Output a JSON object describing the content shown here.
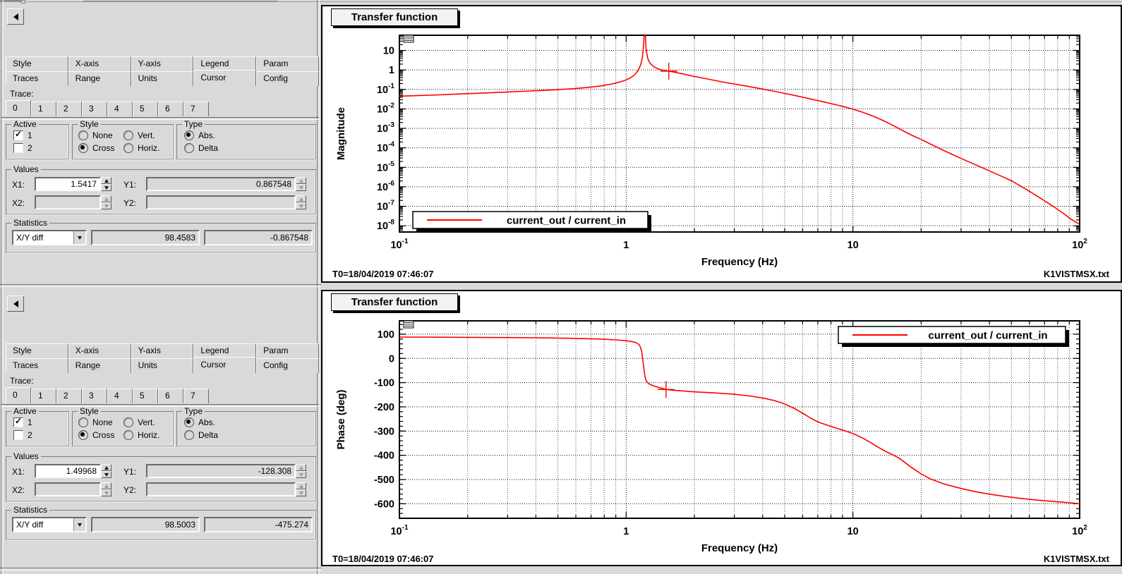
{
  "panels": [
    {
      "tabs_row1": [
        "Style",
        "X-axis",
        "Y-axis",
        "Legend",
        "Param"
      ],
      "tabs_row2": [
        "Traces",
        "Range",
        "Units",
        "Cursor",
        "Config"
      ],
      "active_tab": "Cursor",
      "trace_label": "Trace:",
      "trace_tabs": [
        "0",
        "1",
        "2",
        "3",
        "4",
        "5",
        "6",
        "7"
      ],
      "active_trace": "0",
      "active_group": {
        "title": "Active",
        "items": [
          {
            "label": "1",
            "checked": true
          },
          {
            "label": "2",
            "checked": false
          }
        ]
      },
      "style_group": {
        "title": "Style",
        "items": [
          {
            "label": "None",
            "selected": false
          },
          {
            "label": "Vert.",
            "selected": false
          },
          {
            "label": "Cross",
            "selected": true
          },
          {
            "label": "Horiz.",
            "selected": false
          }
        ]
      },
      "type_group": {
        "title": "Type",
        "items": [
          {
            "label": "Abs.",
            "selected": true
          },
          {
            "label": "Delta",
            "selected": false
          }
        ]
      },
      "values_group": {
        "title": "Values",
        "fields": [
          {
            "label": "X1:",
            "value": "1.5417"
          },
          {
            "label": "Y1:",
            "value": "0.867548"
          },
          {
            "label": "X2:",
            "value": ""
          },
          {
            "label": "Y2:",
            "value": ""
          }
        ]
      },
      "statistics_group": {
        "title": "Statistics",
        "mode": "X/Y diff",
        "value1": "98.4583",
        "value2": "-0.867548"
      }
    },
    {
      "tabs_row1": [
        "Style",
        "X-axis",
        "Y-axis",
        "Legend",
        "Param"
      ],
      "tabs_row2": [
        "Traces",
        "Range",
        "Units",
        "Cursor",
        "Config"
      ],
      "active_tab": "Cursor",
      "trace_label": "Trace:",
      "trace_tabs": [
        "0",
        "1",
        "2",
        "3",
        "4",
        "5",
        "6",
        "7"
      ],
      "active_trace": "0",
      "active_group": {
        "title": "Active",
        "items": [
          {
            "label": "1",
            "checked": true
          },
          {
            "label": "2",
            "checked": false
          }
        ]
      },
      "style_group": {
        "title": "Style",
        "items": [
          {
            "label": "None",
            "selected": false
          },
          {
            "label": "Vert.",
            "selected": false
          },
          {
            "label": "Cross",
            "selected": true
          },
          {
            "label": "Horiz.",
            "selected": false
          }
        ]
      },
      "type_group": {
        "title": "Type",
        "items": [
          {
            "label": "Abs.",
            "selected": true
          },
          {
            "label": "Delta",
            "selected": false
          }
        ]
      },
      "values_group": {
        "title": "Values",
        "fields": [
          {
            "label": "X1:",
            "value": "1.49968"
          },
          {
            "label": "Y1:",
            "value": "-128.308"
          },
          {
            "label": "X2:",
            "value": ""
          },
          {
            "label": "Y2:",
            "value": ""
          }
        ]
      },
      "statistics_group": {
        "title": "Statistics",
        "mode": "X/Y diff",
        "value1": "98.5003",
        "value2": "-475.274"
      }
    }
  ],
  "chart_data": [
    {
      "type": "line",
      "title": "Transfer function",
      "xlabel": "Frequency (Hz)",
      "ylabel": "Magnitude",
      "xscale": "log",
      "yscale": "log",
      "xlim": [
        0.1,
        100
      ],
      "ylog_range": [
        -8.32,
        1.78
      ],
      "grid": true,
      "xticks": [
        {
          "v": 0.1,
          "label": "10",
          "exp": "-1"
        },
        {
          "v": 1,
          "label": "1"
        },
        {
          "v": 10,
          "label": "10"
        },
        {
          "v": 100,
          "label": "10",
          "exp": "2"
        }
      ],
      "yticks": [
        {
          "e": 1,
          "label": "10"
        },
        {
          "e": 0,
          "label": "1"
        },
        {
          "e": -1,
          "label": "10",
          "exp": "-1"
        },
        {
          "e": -2,
          "label": "10",
          "exp": "-2"
        },
        {
          "e": -3,
          "label": "10",
          "exp": "-3"
        },
        {
          "e": -4,
          "label": "10",
          "exp": "-4"
        },
        {
          "e": -5,
          "label": "10",
          "exp": "-5"
        },
        {
          "e": -6,
          "label": "10",
          "exp": "-6"
        },
        {
          "e": -7,
          "label": "10",
          "exp": "-7"
        },
        {
          "e": -8,
          "label": "10",
          "exp": "-8"
        }
      ],
      "legend": {
        "label": "current_out / current_in",
        "color": "#ff0000",
        "position": "bottom-left"
      },
      "cursor": {
        "x": 1.5417,
        "y": 0.867548,
        "color": "#ff0000"
      },
      "footer_left": "T0=18/04/2019 07:46:07",
      "footer_right": "K1VISTMSX.txt",
      "series": [
        {
          "name": "current_out / current_in",
          "color": "#ff0000",
          "points": [
            [
              0.1,
              0.045
            ],
            [
              0.12,
              0.048
            ],
            [
              0.15,
              0.0525
            ],
            [
              0.19,
              0.059
            ],
            [
              0.24,
              0.066
            ],
            [
              0.3,
              0.074
            ],
            [
              0.38,
              0.083
            ],
            [
              0.48,
              0.095
            ],
            [
              0.58,
              0.109
            ],
            [
              0.68,
              0.127
            ],
            [
              0.78,
              0.153
            ],
            [
              0.88,
              0.198
            ],
            [
              0.95,
              0.252
            ],
            [
              1.0,
              0.305
            ],
            [
              1.05,
              0.405
            ],
            [
              1.09,
              0.56
            ],
            [
              1.13,
              0.95
            ],
            [
              1.16,
              1.85
            ],
            [
              1.18,
              4.6
            ],
            [
              1.195,
              22
            ],
            [
              1.205,
              210
            ],
            [
              1.215,
              65
            ],
            [
              1.225,
              11
            ],
            [
              1.24,
              4.6
            ],
            [
              1.26,
              2.75
            ],
            [
              1.29,
              1.9
            ],
            [
              1.33,
              1.42
            ],
            [
              1.38,
              1.14
            ],
            [
              1.45,
              0.97
            ],
            [
              1.5417,
              0.867548
            ],
            [
              1.65,
              0.745
            ],
            [
              1.8,
              0.605
            ],
            [
              2.0,
              0.465
            ],
            [
              2.2,
              0.372
            ],
            [
              2.5,
              0.278
            ],
            [
              2.8,
              0.217
            ],
            [
              3.2,
              0.166
            ],
            [
              3.6,
              0.131
            ],
            [
              4.0,
              0.104
            ],
            [
              4.5,
              0.0805
            ],
            [
              5.0,
              0.0625
            ],
            [
              5.5,
              0.0495
            ],
            [
              6.0,
              0.0398
            ],
            [
              6.5,
              0.0325
            ],
            [
              7.0,
              0.0268
            ],
            [
              7.5,
              0.0223
            ],
            [
              8.0,
              0.0187
            ],
            [
              8.5,
              0.0158
            ],
            [
              9.0,
              0.0134
            ],
            [
              9.5,
              0.0114
            ],
            [
              10,
              0.0096
            ],
            [
              11,
              0.0068
            ],
            [
              12,
              0.0047
            ],
            [
              13,
              0.0032
            ],
            [
              14,
              0.00215
            ],
            [
              15,
              0.00143
            ],
            [
              16,
              0.00096
            ],
            [
              17,
              0.00066
            ],
            [
              18,
              0.00047
            ],
            [
              19,
              0.00035
            ],
            [
              20,
              0.00027
            ],
            [
              22,
              0.000155
            ],
            [
              25,
              7.6e-05
            ],
            [
              28,
              4.1e-05
            ],
            [
              32,
              2.05e-05
            ],
            [
              36,
              1.13e-05
            ],
            [
              40,
              6.6e-06
            ],
            [
              45,
              3.55e-06
            ],
            [
              50,
              2.05e-06
            ],
            [
              57,
              8.5e-07
            ],
            [
              65,
              3.3e-07
            ],
            [
              75,
              1.15e-07
            ],
            [
              85,
              4.2e-08
            ],
            [
              92,
              2.1e-08
            ],
            [
              100,
              1.2e-08
            ]
          ]
        }
      ]
    },
    {
      "type": "line",
      "title": "Transfer function",
      "xlabel": "Frequency (Hz)",
      "ylabel": "Phase (deg)",
      "xscale": "log",
      "yscale": "linear",
      "xlim": [
        0.1,
        100
      ],
      "ylim": [
        -660,
        155
      ],
      "grid": true,
      "xticks": [
        {
          "v": 0.1,
          "label": "10",
          "exp": "-1"
        },
        {
          "v": 1,
          "label": "1"
        },
        {
          "v": 10,
          "label": "10"
        },
        {
          "v": 100,
          "label": "10",
          "exp": "2"
        }
      ],
      "yticks": [
        {
          "v": 100,
          "label": "100"
        },
        {
          "v": 0,
          "label": "0"
        },
        {
          "v": -100,
          "label": "-100"
        },
        {
          "v": -200,
          "label": "-200"
        },
        {
          "v": -300,
          "label": "-300"
        },
        {
          "v": -400,
          "label": "-400"
        },
        {
          "v": -500,
          "label": "-500"
        },
        {
          "v": -600,
          "label": "-600"
        }
      ],
      "legend": {
        "label": "current_out / current_in",
        "color": "#ff0000",
        "position": "top-right"
      },
      "cursor": {
        "x": 1.49968,
        "y": -128.308,
        "color": "#ff0000"
      },
      "footer_left": "T0=18/04/2019 07:46:07",
      "footer_right": "K1VISTMSX.txt",
      "series": [
        {
          "name": "current_out / current_in",
          "color": "#ff0000",
          "points": [
            [
              0.1,
              88
            ],
            [
              0.15,
              87.5
            ],
            [
              0.2,
              87
            ],
            [
              0.3,
              86
            ],
            [
              0.4,
              85
            ],
            [
              0.5,
              84
            ],
            [
              0.6,
              82.5
            ],
            [
              0.7,
              81
            ],
            [
              0.8,
              79
            ],
            [
              0.9,
              76.5
            ],
            [
              1.0,
              73
            ],
            [
              1.05,
              70
            ],
            [
              1.1,
              66
            ],
            [
              1.13,
              60
            ],
            [
              1.15,
              52
            ],
            [
              1.17,
              30
            ],
            [
              1.19,
              -20
            ],
            [
              1.21,
              -75
            ],
            [
              1.23,
              -95
            ],
            [
              1.26,
              -105
            ],
            [
              1.3,
              -111
            ],
            [
              1.35,
              -116
            ],
            [
              1.42,
              -122
            ],
            [
              1.49968,
              -128.308
            ],
            [
              1.6,
              -131
            ],
            [
              1.8,
              -135
            ],
            [
              2.0,
              -138
            ],
            [
              2.3,
              -141
            ],
            [
              2.6,
              -144
            ],
            [
              3.0,
              -148
            ],
            [
              3.5,
              -155
            ],
            [
              4.0,
              -163
            ],
            [
              4.5,
              -174
            ],
            [
              5.0,
              -188
            ],
            [
              5.5,
              -206
            ],
            [
              6.0,
              -226
            ],
            [
              6.5,
              -246
            ],
            [
              7.0,
              -262
            ],
            [
              8.0,
              -281
            ],
            [
              9.0,
              -296
            ],
            [
              10,
              -310
            ],
            [
              11,
              -328
            ],
            [
              12,
              -348
            ],
            [
              13,
              -368
            ],
            [
              14,
              -385
            ],
            [
              15,
              -398
            ],
            [
              16,
              -412
            ],
            [
              18,
              -448
            ],
            [
              20,
              -477
            ],
            [
              22,
              -498
            ],
            [
              25,
              -517
            ],
            [
              28,
              -530
            ],
            [
              32,
              -543
            ],
            [
              36,
              -553
            ],
            [
              41,
              -562
            ],
            [
              47,
              -570
            ],
            [
              55,
              -578
            ],
            [
              65,
              -585
            ],
            [
              78,
              -591
            ],
            [
              90,
              -596
            ],
            [
              100,
              -600
            ]
          ]
        }
      ]
    }
  ]
}
